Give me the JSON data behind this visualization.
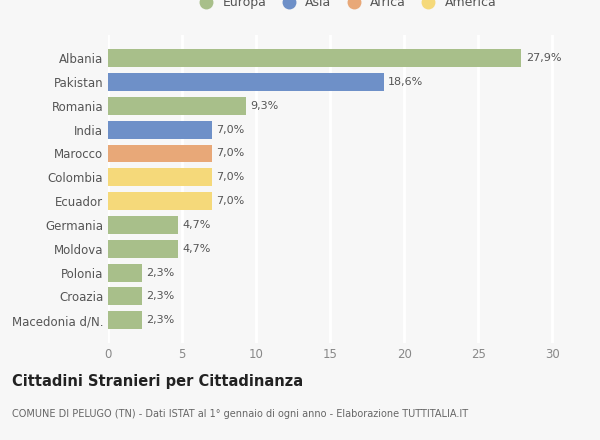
{
  "categories": [
    "Macedonia d/N.",
    "Croazia",
    "Polonia",
    "Moldova",
    "Germania",
    "Ecuador",
    "Colombia",
    "Marocco",
    "India",
    "Romania",
    "Pakistan",
    "Albania"
  ],
  "values": [
    2.3,
    2.3,
    2.3,
    4.7,
    4.7,
    7.0,
    7.0,
    7.0,
    7.0,
    9.3,
    18.6,
    27.9
  ],
  "labels": [
    "2,3%",
    "2,3%",
    "2,3%",
    "4,7%",
    "4,7%",
    "7,0%",
    "7,0%",
    "7,0%",
    "7,0%",
    "9,3%",
    "18,6%",
    "27,9%"
  ],
  "colors": [
    "#a8bf8a",
    "#a8bf8a",
    "#a8bf8a",
    "#a8bf8a",
    "#a8bf8a",
    "#f5d97a",
    "#f5d97a",
    "#e8a878",
    "#6e90c8",
    "#a8bf8a",
    "#6e90c8",
    "#a8bf8a"
  ],
  "legend_labels": [
    "Europa",
    "Asia",
    "Africa",
    "America"
  ],
  "legend_colors": [
    "#a8bf8a",
    "#6e90c8",
    "#e8a878",
    "#f5d97a"
  ],
  "title": "Cittadini Stranieri per Cittadinanza",
  "subtitle": "COMUNE DI PELUGO (TN) - Dati ISTAT al 1° gennaio di ogni anno - Elaborazione TUTTITALIA.IT",
  "xlim": [
    0,
    32
  ],
  "xticks": [
    0,
    5,
    10,
    15,
    20,
    25,
    30
  ],
  "background_color": "#f7f7f7",
  "grid_color": "#ffffff",
  "bar_height": 0.75
}
